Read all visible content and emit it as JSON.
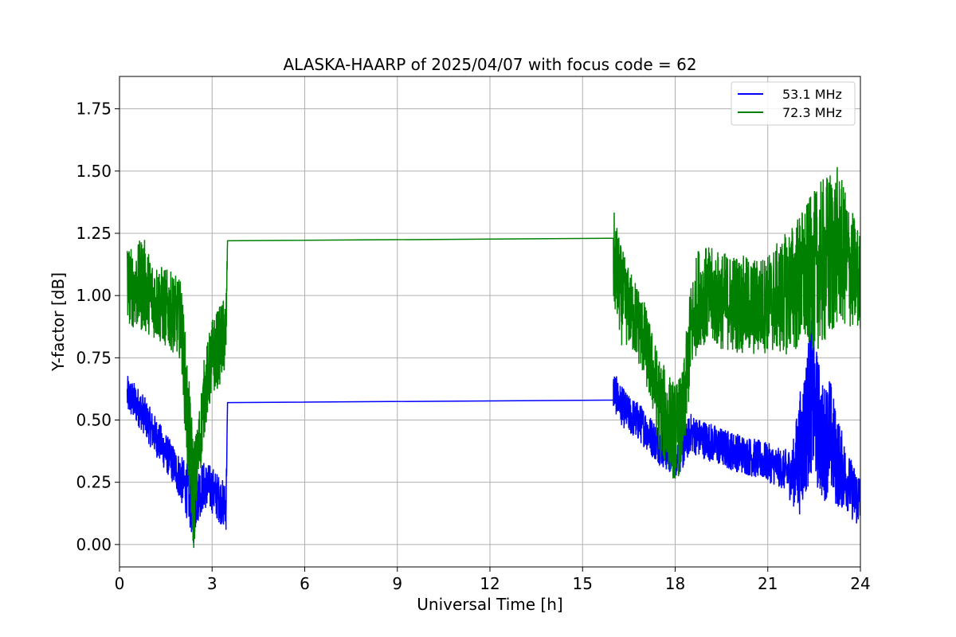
{
  "chart_data": {
    "type": "line",
    "title": "ALASKA-HAARP of 2025/04/07 with focus code = 62",
    "xlabel": "Universal Time [h]",
    "ylabel": "Y-factor [dB]",
    "xlim": [
      0,
      24
    ],
    "ylim": [
      -0.09,
      1.88
    ],
    "xticks": [
      0,
      3,
      6,
      9,
      12,
      15,
      18,
      21,
      24
    ],
    "xtick_labels": [
      "0",
      "3",
      "6",
      "9",
      "12",
      "15",
      "18",
      "21",
      "24"
    ],
    "yticks": [
      0.0,
      0.25,
      0.5,
      0.75,
      1.0,
      1.25,
      1.5,
      1.75
    ],
    "ytick_labels": [
      "0.00",
      "0.25",
      "0.50",
      "0.75",
      "1.00",
      "1.25",
      "1.50",
      "1.75"
    ],
    "grid": true,
    "legend_position": "top-right",
    "series": [
      {
        "name": "53.1 MHz",
        "color": "#0000ff",
        "x": [
          0.25,
          0.5,
          0.75,
          1.0,
          1.25,
          1.5,
          1.75,
          2.0,
          2.25,
          2.4,
          2.5,
          2.75,
          3.0,
          3.25,
          3.45,
          3.5,
          16.0,
          16.0,
          16.25,
          16.5,
          16.75,
          17.0,
          17.25,
          17.5,
          17.75,
          18.0,
          18.25,
          18.5,
          18.75,
          19.0,
          19.5,
          20.0,
          20.5,
          21.0,
          21.5,
          21.8,
          22.0,
          22.2,
          22.4,
          22.6,
          22.8,
          23.0,
          23.2,
          23.4,
          23.6,
          23.8,
          24.0
        ],
        "y": [
          0.6,
          0.57,
          0.53,
          0.47,
          0.42,
          0.37,
          0.32,
          0.26,
          0.2,
          0.12,
          0.2,
          0.24,
          0.22,
          0.18,
          0.15,
          0.57,
          0.58,
          0.62,
          0.56,
          0.52,
          0.5,
          0.47,
          0.43,
          0.4,
          0.37,
          0.35,
          0.38,
          0.45,
          0.43,
          0.42,
          0.39,
          0.37,
          0.35,
          0.33,
          0.3,
          0.28,
          0.35,
          0.45,
          0.6,
          0.5,
          0.4,
          0.45,
          0.35,
          0.3,
          0.25,
          0.2,
          0.18
        ],
        "noise": [
          0.1,
          0.1,
          0.1,
          0.1,
          0.1,
          0.1,
          0.1,
          0.12,
          0.15,
          0.15,
          0.15,
          0.12,
          0.12,
          0.12,
          0.12,
          0.0,
          0.0,
          0.1,
          0.1,
          0.1,
          0.1,
          0.1,
          0.1,
          0.1,
          0.1,
          0.1,
          0.1,
          0.1,
          0.1,
          0.1,
          0.1,
          0.1,
          0.1,
          0.1,
          0.1,
          0.15,
          0.3,
          0.35,
          0.4,
          0.35,
          0.3,
          0.3,
          0.25,
          0.2,
          0.15,
          0.15,
          0.15
        ]
      },
      {
        "name": "72.3 MHz",
        "color": "#008000",
        "x": [
          0.25,
          0.5,
          0.75,
          1.0,
          1.25,
          1.5,
          1.75,
          2.0,
          2.2,
          2.4,
          2.5,
          2.75,
          3.0,
          3.25,
          3.45,
          3.5,
          16.0,
          16.0,
          16.25,
          16.5,
          16.75,
          17.0,
          17.25,
          17.5,
          17.75,
          18.0,
          18.25,
          18.5,
          18.75,
          19.0,
          19.5,
          20.0,
          20.5,
          21.0,
          21.5,
          22.0,
          22.5,
          23.0,
          23.25,
          23.5,
          23.75,
          24.0
        ],
        "y": [
          1.05,
          1.02,
          1.05,
          1.0,
          0.97,
          0.95,
          0.93,
          0.9,
          0.5,
          0.2,
          0.3,
          0.6,
          0.75,
          0.8,
          0.85,
          1.22,
          1.23,
          1.15,
          1.0,
          0.95,
          0.9,
          0.82,
          0.7,
          0.55,
          0.5,
          0.45,
          0.5,
          0.85,
          1.0,
          1.0,
          0.98,
          0.97,
          0.95,
          0.97,
          1.0,
          1.05,
          1.1,
          1.15,
          1.2,
          1.15,
          1.1,
          1.05
        ],
        "noise": [
          0.2,
          0.2,
          0.25,
          0.2,
          0.2,
          0.2,
          0.2,
          0.2,
          0.3,
          0.3,
          0.2,
          0.2,
          0.2,
          0.2,
          0.2,
          0.0,
          0.0,
          0.25,
          0.25,
          0.2,
          0.2,
          0.2,
          0.2,
          0.25,
          0.25,
          0.25,
          0.25,
          0.25,
          0.25,
          0.25,
          0.25,
          0.25,
          0.25,
          0.25,
          0.3,
          0.35,
          0.4,
          0.45,
          0.4,
          0.35,
          0.3,
          0.25
        ]
      }
    ]
  }
}
